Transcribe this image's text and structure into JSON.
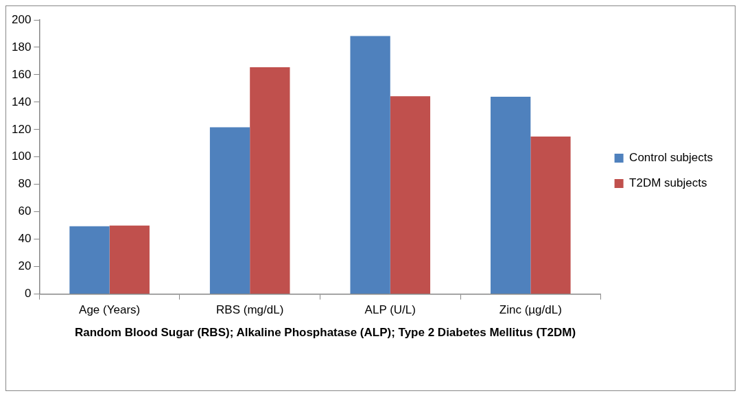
{
  "chart_data": {
    "type": "bar",
    "xlabel": "Random Blood Sugar (RBS); Alkaline Phosphatase (ALP); Type 2 Diabetes Mellitus (T2DM)",
    "categories": [
      "Age (Years)",
      "RBS (mg/dL)",
      "ALP (U/L)",
      "Zinc (µg/dL)"
    ],
    "series": [
      {
        "name": "Control subjects",
        "color": "#4f81bd",
        "values": [
          49.5,
          121.7,
          188.3,
          143.9
        ]
      },
      {
        "name": "T2DM subjects",
        "color": "#c0504d",
        "values": [
          50.0,
          165.5,
          144.3,
          114.9
        ]
      }
    ],
    "ylim": [
      0,
      200
    ],
    "yticks": [
      0,
      20,
      40,
      60,
      80,
      100,
      120,
      140,
      160,
      180,
      200
    ],
    "grid": false,
    "legend": "right"
  }
}
